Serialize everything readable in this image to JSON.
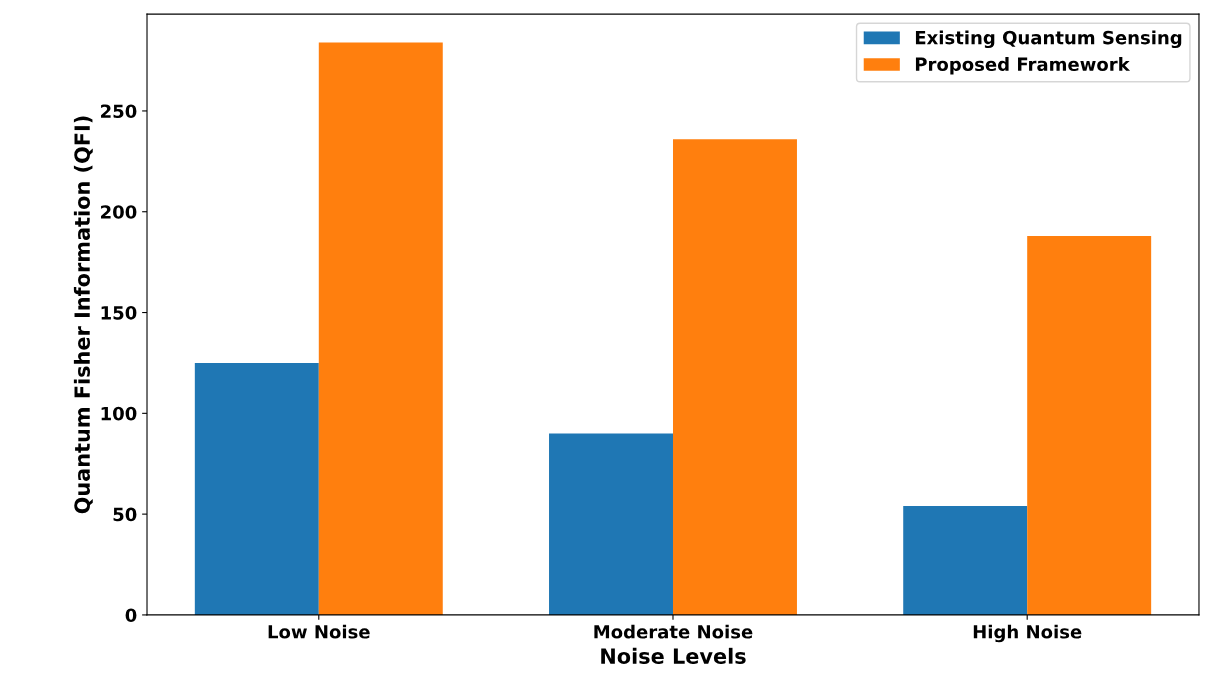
{
  "chart_data": {
    "type": "bar",
    "xlabel": "Noise Levels",
    "ylabel": "Quantum Fisher Information (QFI)",
    "categories": [
      "Low Noise",
      "Moderate Noise",
      "High Noise"
    ],
    "series": [
      {
        "name": "Existing Quantum Sensing",
        "color": "#1f77b4",
        "values": [
          125,
          90,
          54
        ]
      },
      {
        "name": "Proposed Framework",
        "color": "#ff7f0e",
        "values": [
          284,
          236,
          188
        ]
      }
    ],
    "ylim": [
      0,
      298
    ],
    "yticks": [
      0,
      50,
      100,
      150,
      200,
      250
    ],
    "grid": false,
    "legend": "top right"
  }
}
